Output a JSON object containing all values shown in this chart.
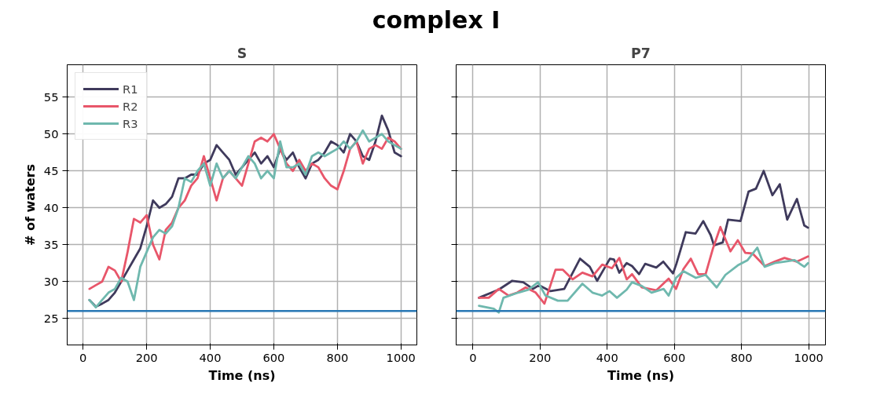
{
  "chart_data": [
    {
      "type": "line",
      "title": "S",
      "annotations": [
        "complex I"
      ],
      "xlabel": "Time (ns)",
      "ylabel": "# of waters",
      "xlim": [
        -50,
        1050
      ],
      "ylim": [
        21.4,
        59.4
      ],
      "xticks": [
        0,
        200,
        400,
        600,
        800,
        1000
      ],
      "yticks": [
        25,
        30,
        35,
        40,
        45,
        50,
        55
      ],
      "grid": true,
      "legend": "top left",
      "line_style": "solid",
      "ref_lines": [
        {
          "axis": "y",
          "value": 26,
          "label": null,
          "color": "#2878b5"
        }
      ],
      "series": [
        {
          "name": "R1",
          "color": "#3f3a5c",
          "x": [
            20,
            40,
            60,
            80,
            100,
            120,
            140,
            160,
            180,
            200,
            220,
            240,
            260,
            280,
            300,
            320,
            340,
            360,
            380,
            400,
            420,
            440,
            460,
            480,
            500,
            520,
            540,
            560,
            580,
            600,
            620,
            640,
            660,
            680,
            700,
            720,
            740,
            760,
            780,
            800,
            820,
            840,
            860,
            880,
            900,
            920,
            940,
            960,
            980,
            1000
          ],
          "values": [
            27.5,
            26.6,
            27,
            27.5,
            28.5,
            30,
            31.5,
            33,
            34.5,
            37.5,
            41,
            40,
            40.5,
            41.5,
            44,
            44,
            44.5,
            44.5,
            46,
            46.5,
            48.5,
            47.5,
            46.5,
            44.5,
            45.5,
            46.5,
            47.5,
            46,
            47,
            45.5,
            48,
            46.5,
            47.5,
            45.5,
            44,
            46,
            46.5,
            47.5,
            49,
            48.5,
            47.5,
            50,
            49,
            47,
            46.5,
            49,
            52.5,
            50.5,
            47.5,
            47
          ]
        },
        {
          "name": "R2",
          "color": "#e8566a",
          "x": [
            20,
            40,
            60,
            80,
            100,
            120,
            140,
            160,
            180,
            200,
            220,
            240,
            260,
            280,
            300,
            320,
            340,
            360,
            380,
            400,
            420,
            440,
            460,
            480,
            500,
            520,
            540,
            560,
            580,
            600,
            620,
            640,
            660,
            680,
            700,
            720,
            740,
            760,
            780,
            800,
            820,
            840,
            860,
            880,
            900,
            920,
            940,
            960,
            980,
            1000
          ],
          "values": [
            29,
            29.5,
            30,
            32,
            31.5,
            30,
            34,
            38.5,
            38,
            39,
            35,
            33,
            37,
            38,
            40,
            41,
            43,
            44,
            47,
            44,
            41,
            44,
            45,
            44,
            43,
            46,
            49,
            49.5,
            49,
            50,
            48,
            46,
            45,
            46.5,
            45,
            46,
            45.5,
            44,
            43,
            42.5,
            45,
            48,
            49,
            46,
            48,
            48.5,
            48,
            49.5,
            49,
            48
          ]
        },
        {
          "name": "R3",
          "color": "#6fb8ae",
          "x": [
            20,
            40,
            60,
            80,
            100,
            120,
            140,
            160,
            180,
            200,
            220,
            240,
            260,
            280,
            300,
            320,
            340,
            360,
            380,
            400,
            420,
            440,
            460,
            480,
            500,
            520,
            540,
            560,
            580,
            600,
            620,
            640,
            660,
            680,
            700,
            720,
            740,
            760,
            780,
            800,
            820,
            840,
            860,
            880,
            900,
            920,
            940,
            960,
            980,
            1000
          ],
          "values": [
            27.5,
            26.5,
            27.5,
            28.5,
            29,
            30.5,
            30,
            27.5,
            32,
            34,
            36,
            37,
            36.5,
            37.5,
            40,
            44,
            43.5,
            45,
            46,
            43,
            46,
            44,
            45,
            44,
            45.5,
            47,
            46,
            44,
            45,
            44,
            49,
            45.5,
            45.5,
            46,
            44.5,
            47,
            47.5,
            47,
            47.5,
            48,
            49,
            48,
            49,
            50.5,
            49,
            49.5,
            50,
            49,
            48.5,
            48
          ]
        }
      ]
    },
    {
      "type": "line",
      "title": "P7",
      "xlabel": "Time (ns)",
      "tick_labels": "x",
      "xlim": [
        -50,
        1050
      ],
      "ylim": [
        21.4,
        59.4
      ],
      "xticks": [
        0,
        200,
        400,
        600,
        800,
        1000
      ],
      "yticks": [
        25,
        30,
        35,
        40,
        45,
        50,
        55
      ],
      "grid": true,
      "line_style": "solid",
      "ref_lines": [
        {
          "axis": "y",
          "value": 26,
          "label": null,
          "color": "#2878b5"
        }
      ],
      "series": [
        {
          "color": "#3f3a5c",
          "x": [
            18,
            77,
            117,
            150,
            179,
            197,
            231,
            272,
            319,
            348,
            370,
            408,
            420,
            436,
            458,
            474,
            495,
            513,
            546,
            567,
            596,
            606,
            634,
            663,
            686,
            708,
            718,
            744,
            760,
            797,
            821,
            843,
            866,
            892,
            914,
            936,
            965,
            987,
            998
          ],
          "values": [
            27.8,
            28.9,
            30.1,
            29.9,
            29,
            29.5,
            28.7,
            29,
            33.1,
            32,
            30.1,
            33.1,
            33,
            31.2,
            32.5,
            32.1,
            31,
            32.4,
            31.9,
            32.7,
            31.1,
            32.4,
            36.7,
            36.5,
            38.2,
            36.3,
            34.9,
            35.3,
            38.4,
            38.2,
            42.2,
            42.6,
            45,
            41.7,
            43.2,
            38.4,
            41.2,
            37.6,
            37.3
          ]
        },
        {
          "color": "#e8566a",
          "x": [
            18,
            47,
            77,
            106,
            132,
            157,
            187,
            213,
            246,
            268,
            297,
            326,
            356,
            385,
            414,
            436,
            458,
            474,
            503,
            546,
            583,
            605,
            627,
            649,
            671,
            693,
            715,
            737,
            767,
            789,
            811,
            833,
            869,
            899,
            928,
            965,
            998
          ],
          "values": [
            27.8,
            27.8,
            29,
            28.1,
            28.5,
            29.2,
            28.5,
            27,
            31.6,
            31.6,
            30.3,
            31.2,
            30.7,
            32.3,
            31.8,
            33.2,
            30.3,
            31,
            29.2,
            28.8,
            30.4,
            29,
            31.7,
            33.1,
            31,
            31,
            34.5,
            37.4,
            34.1,
            35.6,
            33.9,
            33.8,
            32.1,
            32.7,
            33.2,
            32.7,
            33.4
          ]
        },
        {
          "color": "#6fb8ae",
          "x": [
            18,
            62,
            77,
            91,
            135,
            165,
            194,
            216,
            253,
            282,
            326,
            356,
            385,
            407,
            429,
            458,
            474,
            503,
            532,
            568,
            583,
            605,
            627,
            664,
            693,
            726,
            752,
            789,
            818,
            847,
            869,
            899,
            928,
            958,
            987,
            998
          ],
          "values": [
            26.7,
            26.3,
            25.8,
            27.8,
            28.5,
            28.9,
            29.9,
            28.1,
            27.4,
            27.4,
            29.7,
            28.5,
            28.1,
            28.7,
            27.8,
            28.9,
            29.9,
            29.4,
            28.5,
            29,
            28.1,
            30.5,
            31.4,
            30.5,
            30.9,
            29.2,
            30.9,
            32.2,
            32.9,
            34.6,
            32,
            32.5,
            32.7,
            32.9,
            32,
            32.5
          ]
        }
      ]
    }
  ]
}
